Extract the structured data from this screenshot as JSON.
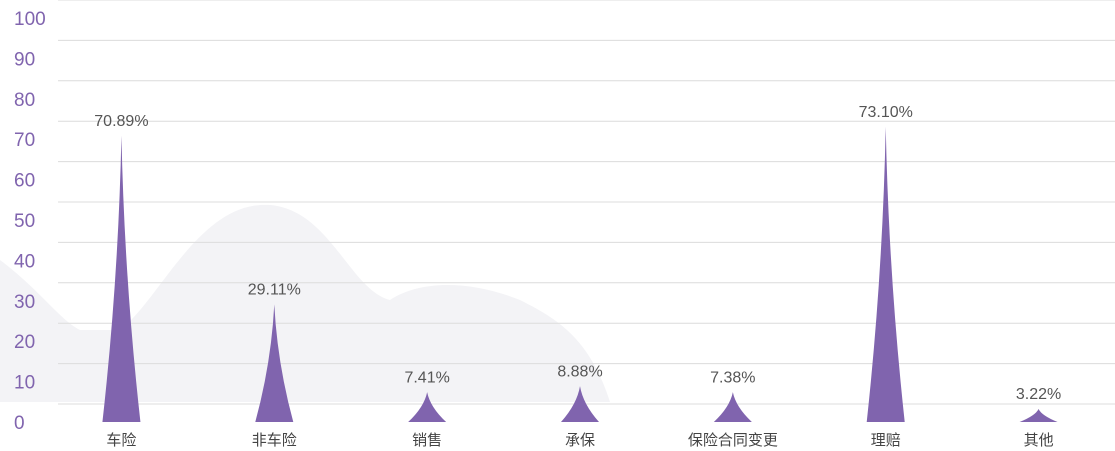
{
  "chart_data": {
    "type": "pictorial-triangle-bar",
    "categories": [
      "车险",
      "非车险",
      "销售",
      "承保",
      "保险合同变更",
      "理赔",
      "其他"
    ],
    "values": [
      70.89,
      29.11,
      7.41,
      8.88,
      7.38,
      73.1,
      3.22
    ],
    "value_labels": [
      "70.89%",
      "29.11%",
      "7.41%",
      "8.88%",
      "7.38%",
      "73.10%",
      "3.22%"
    ],
    "color": "#8064ae",
    "ylim": [
      0,
      100
    ],
    "yticks": [
      0,
      10,
      20,
      30,
      40,
      50,
      60,
      70,
      80,
      90,
      100
    ],
    "grid": true
  }
}
